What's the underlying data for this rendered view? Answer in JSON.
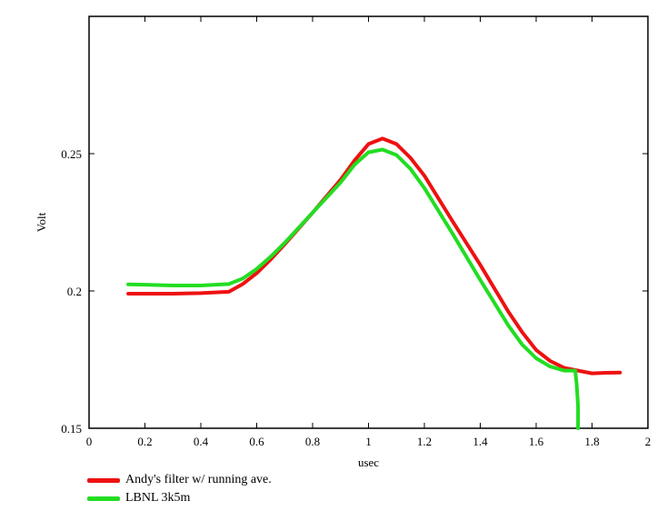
{
  "chart_data": {
    "type": "line",
    "title": "",
    "xlabel": "usec",
    "ylabel": "Volt",
    "xlim": [
      0,
      2
    ],
    "ylim": [
      0.15,
      0.3
    ],
    "xticks": [
      "0",
      "0.2",
      "0.4",
      "0.6",
      "0.8",
      "1",
      "1.2",
      "1.4",
      "1.6",
      "1.8",
      "2"
    ],
    "xtick_values": [
      0,
      0.2,
      0.4,
      0.6,
      0.8,
      1.0,
      1.2,
      1.4,
      1.6,
      1.8,
      2.0
    ],
    "yticks": [
      "0.15",
      "0.2",
      "0.25"
    ],
    "ytick_values": [
      0.15,
      0.2,
      0.25
    ],
    "grid": false,
    "legend_position": "bottom-left, below plot",
    "series": [
      {
        "name": "Andy's filter w/ running ave.",
        "color": "#ee1111",
        "x": [
          0.14,
          0.2,
          0.3,
          0.4,
          0.5,
          0.55,
          0.6,
          0.65,
          0.7,
          0.8,
          0.9,
          0.95,
          1.0,
          1.05,
          1.1,
          1.15,
          1.2,
          1.3,
          1.4,
          1.5,
          1.55,
          1.6,
          1.65,
          1.7,
          1.75,
          1.8,
          1.85,
          1.9
        ],
        "y": [
          0.199,
          0.199,
          0.199,
          0.1992,
          0.1997,
          0.2025,
          0.2065,
          0.2115,
          0.217,
          0.2285,
          0.2405,
          0.2475,
          0.2535,
          0.2555,
          0.2535,
          0.2485,
          0.242,
          0.2255,
          0.2095,
          0.1925,
          0.185,
          0.1785,
          0.1745,
          0.172,
          0.171,
          0.17,
          0.1702,
          0.1703
        ]
      },
      {
        "name": "LBNL 3k5m",
        "color": "#22dd22",
        "x": [
          0.14,
          0.2,
          0.3,
          0.4,
          0.5,
          0.55,
          0.6,
          0.65,
          0.7,
          0.8,
          0.9,
          0.95,
          1.0,
          1.05,
          1.1,
          1.15,
          1.2,
          1.3,
          1.4,
          1.5,
          1.55,
          1.6,
          1.65,
          1.7,
          1.74,
          1.745,
          1.75,
          1.75
        ],
        "y": [
          0.2024,
          0.2023,
          0.202,
          0.202,
          0.2025,
          0.2045,
          0.208,
          0.2125,
          0.2175,
          0.2285,
          0.2395,
          0.246,
          0.2505,
          0.2515,
          0.2495,
          0.2445,
          0.2375,
          0.221,
          0.204,
          0.1875,
          0.1805,
          0.1755,
          0.1725,
          0.171,
          0.171,
          0.166,
          0.158,
          0.15
        ]
      }
    ]
  }
}
